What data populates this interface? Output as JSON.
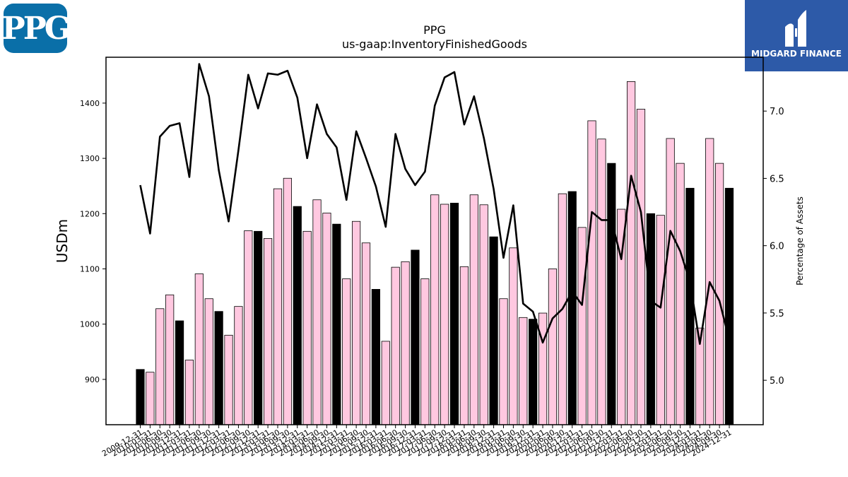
{
  "logos": {
    "left_text": "PPG",
    "left_color": "#0a6fa8",
    "right_text": "MIDGARD FINANCE",
    "right_color": "#2d5aa8"
  },
  "chart_data": {
    "type": "bar",
    "title": "PPG",
    "subtitle": "us-gaap:InventoryFinishedGoods",
    "ylabel": "USDm",
    "y2label": "Percentage of Assets",
    "ylim": [
      818,
      1483
    ],
    "y2lim": [
      4.67,
      7.4
    ],
    "yticks": [
      900,
      1000,
      1100,
      1200,
      1300,
      1400
    ],
    "y2ticks": [
      5.0,
      5.5,
      6.0,
      6.5,
      7.0
    ],
    "colors": {
      "annual": "#000000",
      "quarter": "#ffc8e0",
      "line": "#000000"
    },
    "categories": [
      "2009-12-31",
      "2010-03-31",
      "2010-06-30",
      "2010-09-30",
      "2010-12-31",
      "2011-03-31",
      "2011-06-30",
      "2011-09-30",
      "2011-12-31",
      "2012-03-31",
      "2012-06-30",
      "2012-09-30",
      "2012-12-31",
      "2013-03-31",
      "2013-06-30",
      "2013-09-30",
      "2013-12-31",
      "2014-03-31",
      "2014-06-30",
      "2014-09-30",
      "2014-12-31",
      "2015-03-31",
      "2015-06-30",
      "2015-09-30",
      "2015-12-31",
      "2016-03-31",
      "2016-06-30",
      "2016-09-30",
      "2016-12-31",
      "2017-03-31",
      "2017-06-30",
      "2017-09-30",
      "2017-12-31",
      "2018-03-31",
      "2018-06-30",
      "2018-09-30",
      "2018-12-31",
      "2019-03-31",
      "2019-06-30",
      "2019-09-30",
      "2019-12-31",
      "2020-03-31",
      "2020-06-30",
      "2020-09-30",
      "2020-12-31",
      "2021-03-31",
      "2021-06-30",
      "2021-09-30",
      "2021-12-31",
      "2022-03-31",
      "2022-06-30",
      "2022-09-30",
      "2022-12-31",
      "2023-03-31",
      "2023-06-30",
      "2023-09-30",
      "2023-12-31",
      "2024-03-31",
      "2024-06-30",
      "2024-09-30",
      "2024-12-31"
    ],
    "xtick_labels": [
      "2009-12-31",
      "2010-03-31",
      "2010-06-30",
      "2010-09-30",
      "2010-12-31",
      "2011-03-31",
      "2011-06-30",
      "2011-09-30",
      "2011-12-31",
      "2012-03-31",
      "2012-06-30",
      "2012-09-30",
      "2012-12-31",
      "2013-03-31",
      "2013-06-30",
      "2013-09-30",
      "2013-12-31",
      "2014-03-31",
      "2014-06-30",
      "2014-09-30",
      "2014-12-31",
      "2015-03-31",
      "2015-06-30",
      "2015-09-30",
      "2015-12-31",
      "2016-03-31",
      "2016-06-30",
      "2016-09-30",
      "2016-12-31",
      "2017-03-31",
      "2017-06-30",
      "2017-09-30",
      "2017-12-31",
      "2018-03-31",
      "2018-06-30",
      "2018-09-30",
      "2018-12-31",
      "2019-03-31",
      "2019-06-30",
      "2019-09-30",
      "2019-12-31",
      "2020-03-31",
      "2020-06-30",
      "2020-09-30",
      "2020-12-31",
      "2021-03-31",
      "2021-06-30",
      "2021-09-30",
      "2021-12-31",
      "2022-03-31",
      "2022-06-30",
      "2022-09-30",
      "2022-12-31",
      "2023-03-31",
      "2023-06-30",
      "2023-09-30",
      "2023-12-31",
      "2024-03-31",
      "2024-06-30",
      "2024-09-30",
      "2024-12-31"
    ],
    "annual": [
      true,
      false,
      false,
      false,
      true,
      false,
      false,
      false,
      true,
      false,
      false,
      false,
      true,
      false,
      false,
      false,
      true,
      false,
      false,
      false,
      true,
      false,
      false,
      false,
      true,
      false,
      false,
      false,
      true,
      false,
      false,
      false,
      true,
      false,
      false,
      false,
      true,
      false,
      false,
      false,
      true,
      false,
      false,
      false,
      true,
      false,
      false,
      false,
      true,
      false,
      false,
      false,
      true,
      false,
      false,
      false,
      true,
      false,
      false,
      false,
      true
    ],
    "series": [
      {
        "name": "USDm",
        "values": [
          918,
          913,
          1028,
          1053,
          1006,
          935,
          1091,
          1046,
          1023,
          980,
          1032,
          1169,
          1168,
          1155,
          1245,
          1264,
          1213,
          1168,
          1225,
          1201,
          1181,
          1082,
          1186,
          1147,
          1063,
          969,
          1103,
          1113,
          1134,
          1082,
          1234,
          1217,
          1219,
          1104,
          1234,
          1216,
          1158,
          1046,
          1138,
          1012,
          1009,
          1020,
          1100,
          1236,
          1240,
          1175,
          1368,
          1335,
          1291,
          1208,
          1439,
          1389,
          1200,
          1197,
          1336,
          1291,
          1246,
          993,
          1336,
          1291,
          1246
        ]
      },
      {
        "name": "Percentage of Assets",
        "values": [
          6.45,
          6.09,
          6.81,
          6.89,
          6.91,
          6.51,
          7.35,
          7.11,
          6.56,
          6.18,
          6.71,
          7.27,
          7.02,
          7.28,
          7.27,
          7.3,
          7.1,
          6.65,
          7.05,
          6.83,
          6.73,
          6.34,
          6.85,
          6.65,
          6.44,
          6.14,
          6.83,
          6.57,
          6.45,
          6.55,
          7.04,
          7.25,
          7.29,
          6.9,
          7.11,
          6.8,
          6.42,
          5.91,
          6.3,
          5.57,
          5.51,
          5.28,
          5.46,
          5.53,
          5.66,
          5.56,
          6.25,
          6.19,
          6.19,
          5.9,
          6.52,
          6.25,
          5.59,
          5.54,
          6.11,
          5.96,
          5.73,
          5.27,
          5.73,
          5.59,
          5.3
        ]
      }
    ]
  }
}
